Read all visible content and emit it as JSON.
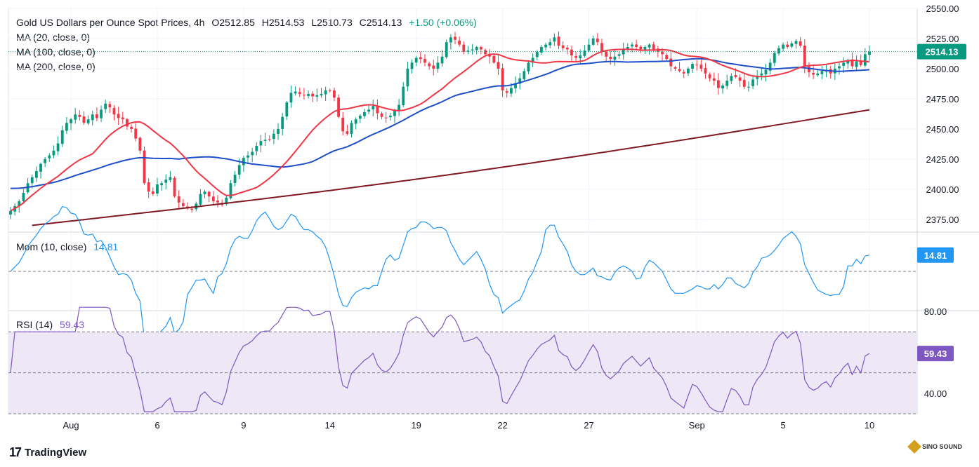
{
  "header": {
    "title": "Gold US Dollars per Ounce Spot Prices, 4h",
    "ohlc_open": "O2512.85",
    "ohlc_high": "H2514.53",
    "ohlc_low": "L2510.73",
    "ohlc_close": "C2514.13",
    "change": "+1.50 (+0.06%)",
    "ma20": "MA (20, close, 0)",
    "ma100": "MA (100, close, 0)",
    "ma200": "MA (200, close, 0)"
  },
  "momentum": {
    "label": "Mom (10, close)",
    "value": "14.81"
  },
  "rsi": {
    "label": "RSI (14)",
    "value": "59.43"
  },
  "branding": {
    "name": "TradingView",
    "watermark": "SINO SOUND"
  },
  "colors": {
    "up": "#089981",
    "down": "#f23645",
    "ma20": "#f23645",
    "ma100": "#1e4fc9",
    "ma200": "#801922",
    "mom": "#2196f3",
    "rsi": "#7e57c2",
    "rsi_band": "#ede7f6"
  },
  "chart_data": [
    {
      "type": "candlestick",
      "title": "Gold US Dollars per Ounce Spot Prices, 4h",
      "ylim": [
        2365,
        2550
      ],
      "yticks": [
        2375,
        2400,
        2425,
        2450,
        2475,
        2500,
        2525,
        2550
      ],
      "ytick_labels": [
        "2375.00",
        "2400.00",
        "2425.00",
        "2450.00",
        "2475.00",
        "2500.00",
        "2525.00",
        "2550.00"
      ],
      "x_tick_labels": [
        {
          "label": "Aug",
          "i": 14
        },
        {
          "label": "6",
          "i": 34
        },
        {
          "label": "9",
          "i": 54
        },
        {
          "label": "14",
          "i": 74
        },
        {
          "label": "19",
          "i": 94
        },
        {
          "label": "22",
          "i": 114
        },
        {
          "label": "27",
          "i": 134
        },
        {
          "label": "Sep",
          "i": 159
        },
        {
          "label": "5",
          "i": 179
        },
        {
          "label": "10",
          "i": 199
        }
      ],
      "last_price": "2514.13",
      "close": [
        2382,
        2386,
        2390,
        2397,
        2405,
        2410,
        2415,
        2421,
        2425,
        2428,
        2432,
        2438,
        2449,
        2455,
        2458,
        2462,
        2460,
        2455,
        2458,
        2462,
        2459,
        2466,
        2471,
        2468,
        2462,
        2459,
        2458,
        2452,
        2450,
        2442,
        2432,
        2405,
        2398,
        2396,
        2404,
        2405,
        2408,
        2410,
        2394,
        2389,
        2386,
        2384,
        2383,
        2388,
        2396,
        2398,
        2394,
        2390,
        2389,
        2387,
        2393,
        2405,
        2412,
        2420,
        2426,
        2428,
        2431,
        2436,
        2440,
        2441,
        2441,
        2446,
        2450,
        2460,
        2472,
        2480,
        2481,
        2479,
        2478,
        2479,
        2477,
        2478,
        2479,
        2482,
        2482,
        2476,
        2460,
        2448,
        2446,
        2455,
        2458,
        2461,
        2464,
        2466,
        2469,
        2463,
        2460,
        2459,
        2461,
        2465,
        2470,
        2485,
        2500,
        2505,
        2509,
        2508,
        2505,
        2502,
        2500,
        2505,
        2510,
        2522,
        2526,
        2524,
        2520,
        2514,
        2515,
        2516,
        2518,
        2516,
        2512,
        2510,
        2505,
        2500,
        2482,
        2480,
        2484,
        2488,
        2492,
        2498,
        2505,
        2509,
        2514,
        2518,
        2520,
        2522,
        2526,
        2519,
        2517,
        2516,
        2511,
        2509,
        2511,
        2515,
        2520,
        2525,
        2522,
        2514,
        2510,
        2508,
        2510,
        2512,
        2516,
        2518,
        2520,
        2518,
        2516,
        2518,
        2520,
        2516,
        2514,
        2512,
        2508,
        2502,
        2500,
        2498,
        2496,
        2500,
        2504,
        2503,
        2500,
        2496,
        2492,
        2490,
        2484,
        2486,
        2490,
        2494,
        2493,
        2490,
        2485,
        2485,
        2491,
        2494,
        2496,
        2499,
        2505,
        2513,
        2517,
        2520,
        2518,
        2521,
        2523,
        2519,
        2502,
        2497,
        2495,
        2496,
        2498,
        2499,
        2496,
        2500,
        2502,
        2505,
        2507,
        2502,
        2506,
        2503,
        2512,
        2514
      ],
      "high_extremes": {
        "max": 2532,
        "min_low": 2366
      }
    },
    {
      "type": "line",
      "title": "Mom (10, close)",
      "last": 14.81,
      "zero_line": 0
    },
    {
      "type": "line",
      "title": "RSI (14)",
      "ylim": [
        30,
        80
      ],
      "yticks": [
        40,
        80
      ],
      "ytick_labels": [
        "40.00",
        "80.00"
      ],
      "bands": [
        30,
        50,
        70
      ],
      "last": 59.43
    }
  ]
}
